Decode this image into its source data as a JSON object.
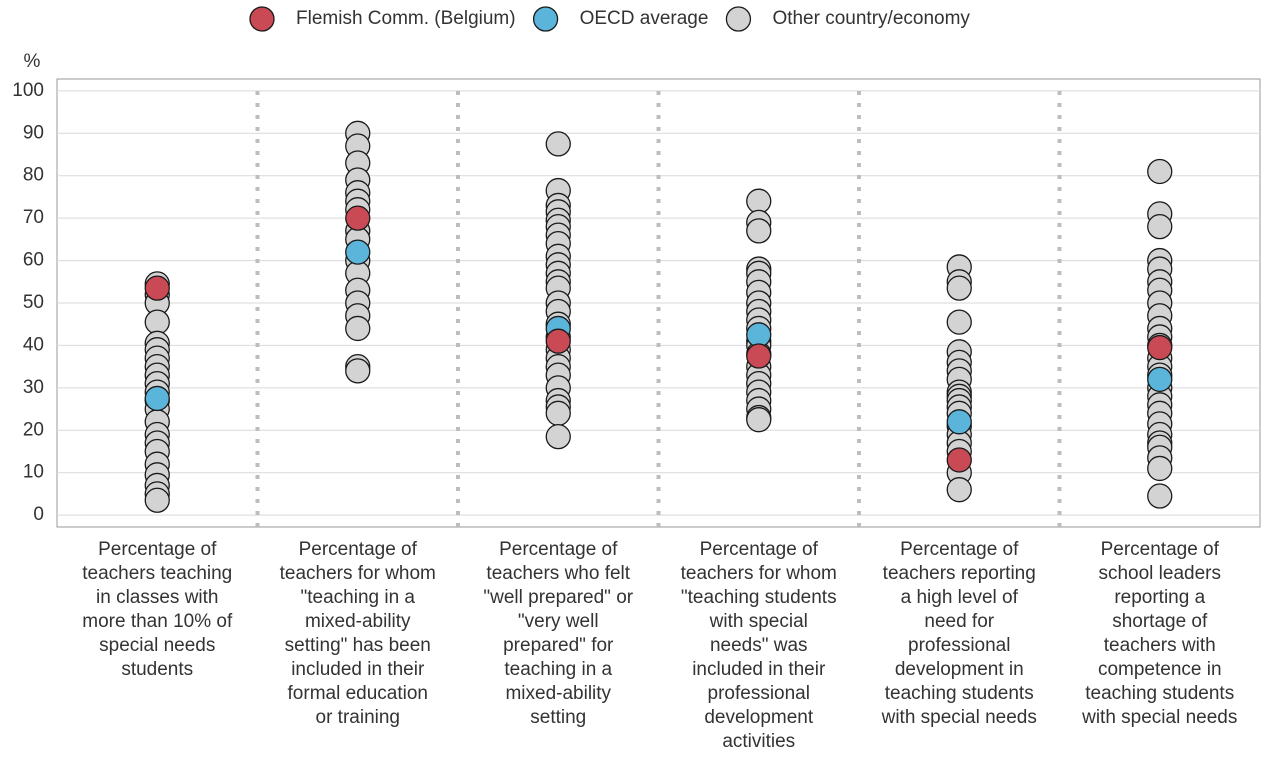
{
  "chart_data": {
    "type": "strip",
    "y_label": "%",
    "categories": [
      [
        "Percentage of",
        "teachers teaching",
        "in classes with",
        "more than 10% of",
        "special needs",
        "students"
      ],
      [
        "Percentage of",
        "teachers for whom",
        "\"teaching in a",
        "mixed-ability",
        "setting\" has been",
        "included in their",
        "formal education",
        "or training"
      ],
      [
        "Percentage of",
        "teachers who felt",
        "\"well prepared\" or",
        "\"very well",
        "prepared\" for",
        "teaching in a",
        "mixed-ability",
        "setting"
      ],
      [
        "Percentage of",
        "teachers for whom",
        "\"teaching students",
        "with special",
        "needs\" was",
        "included in their",
        "professional",
        "development",
        "activities"
      ],
      [
        "Percentage of",
        "teachers reporting",
        "a high level of",
        "need for",
        "professional",
        "development in",
        "teaching students",
        "with special needs"
      ],
      [
        "Percentage of",
        "school leaders",
        "reporting a",
        "shortage of",
        "teachers with",
        "competence in",
        "teaching students",
        "with special needs"
      ]
    ],
    "series": [
      {
        "name": "Other country/economy",
        "color": "#d3d3d3",
        "values": [
          [
            54.5,
            52,
            50,
            45.5,
            40.5,
            39,
            37,
            35,
            33,
            31,
            29,
            27,
            25,
            22,
            19,
            17,
            15,
            12,
            9.5,
            7,
            5,
            3.5
          ],
          [
            90,
            87,
            83,
            79,
            76,
            74,
            72,
            67,
            65,
            60,
            57,
            53,
            50,
            47,
            44,
            35,
            34
          ],
          [
            87.5,
            76.5,
            73,
            71.5,
            69.5,
            68,
            66,
            64,
            61,
            59,
            57,
            55,
            53.5,
            50,
            48,
            45,
            42,
            39,
            37,
            35,
            33,
            30,
            27,
            25.5,
            24,
            18.5
          ],
          [
            74,
            69,
            67,
            58,
            57,
            55,
            52.5,
            50,
            48,
            46,
            44,
            41,
            40,
            38,
            35,
            33,
            31,
            29,
            27,
            25,
            23,
            22.5
          ],
          [
            58.5,
            55,
            53.5,
            45.5,
            38.5,
            36,
            34,
            32,
            29,
            28,
            27,
            25.5,
            24,
            21,
            19,
            17,
            15,
            10,
            6
          ],
          [
            81,
            71,
            68,
            60,
            58,
            55,
            53,
            50,
            47,
            44,
            42,
            40,
            37,
            35,
            33,
            30,
            28,
            26,
            24,
            21.5,
            19,
            17,
            16,
            13.5,
            11,
            4.5
          ]
        ]
      },
      {
        "name": "OECD average",
        "color": "#5bb4d9",
        "values": [
          27.5,
          62,
          44,
          42.5,
          22,
          32
        ]
      },
      {
        "name": "Flemish Comm. (Belgium)",
        "color": "#c94a54",
        "values": [
          53.5,
          70,
          41,
          37.5,
          13,
          39.5
        ]
      }
    ],
    "legend_order": [
      2,
      1,
      0
    ],
    "ylim": [
      -2.8,
      102.8
    ],
    "yticks": [
      0,
      10,
      20,
      30,
      40,
      50,
      60,
      70,
      80,
      90,
      100
    ],
    "grid": true
  }
}
